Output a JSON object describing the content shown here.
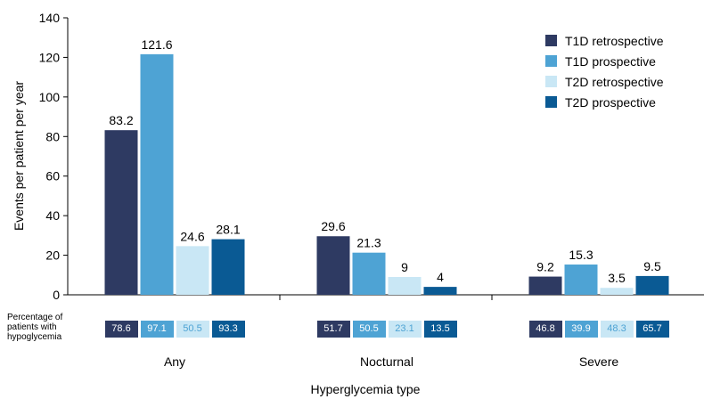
{
  "chart_data": {
    "type": "bar",
    "title": "",
    "xlabel": "Hyperglycemia type",
    "ylabel": "Events per patient per year",
    "ylim": [
      0,
      140
    ],
    "yticks": [
      "0",
      "20",
      "40",
      "60",
      "80",
      "100",
      "120",
      "140"
    ],
    "grid": false,
    "legend_position": "top-right",
    "categories": [
      "Any",
      "Nocturnal",
      "Severe"
    ],
    "series": [
      {
        "name": "T1D retrospective",
        "color": "#2e3a62",
        "values": [
          83.2,
          29.6,
          9.2
        ],
        "labels": [
          "83.2",
          "29.6",
          "9.2"
        ]
      },
      {
        "name": "T1D prospective",
        "color": "#4ea3d4",
        "values": [
          121.6,
          21.3,
          15.3
        ],
        "labels": [
          "121.6",
          "21.3",
          "15.3"
        ]
      },
      {
        "name": "T2D retrospective",
        "color": "#c9e7f5",
        "values": [
          24.6,
          9,
          3.5
        ],
        "labels": [
          "24.6",
          "9",
          "3.5"
        ]
      },
      {
        "name": "T2D prospective",
        "color": "#0a5a94",
        "values": [
          28.1,
          4,
          9.5
        ],
        "labels": [
          "28.1",
          "4",
          "9.5"
        ]
      }
    ],
    "percentage_row": {
      "label": "Percentage of patients with hypoglycemia",
      "values": [
        [
          "78.6",
          "97.1",
          "50.5",
          "93.3"
        ],
        [
          "51.7",
          "50.5",
          "23.1",
          "13.5"
        ],
        [
          "46.8",
          "39.9",
          "48.3",
          "65.7"
        ]
      ],
      "text_colors": [
        "#ffffff",
        "#ffffff",
        "#4ea3d4",
        "#ffffff"
      ]
    }
  }
}
